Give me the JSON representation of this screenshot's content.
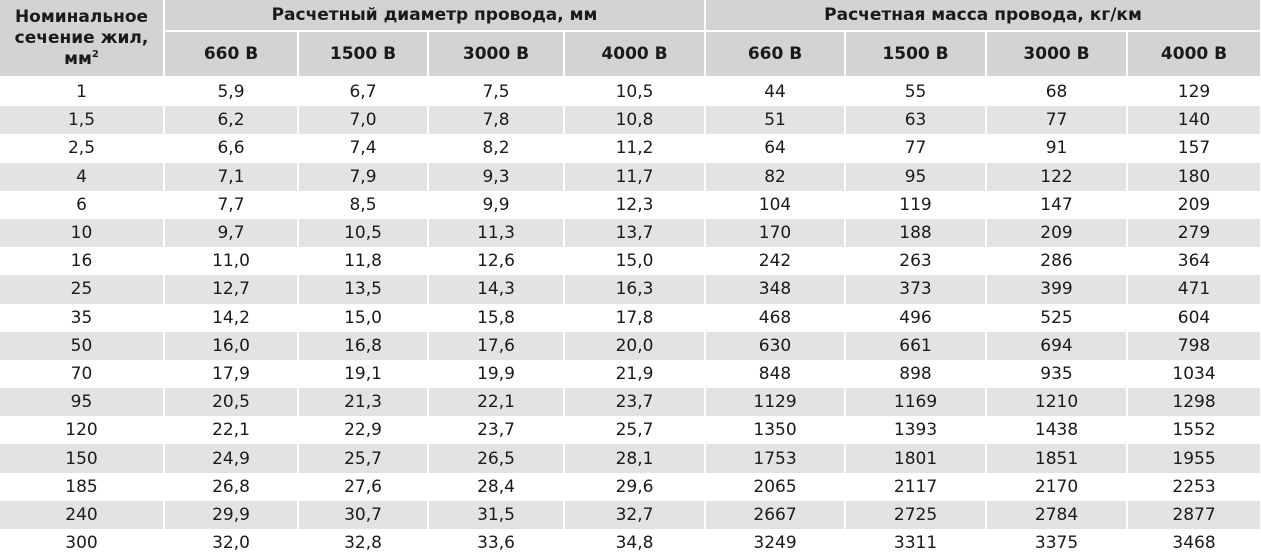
{
  "header": {
    "corner_line1": "Номинальное",
    "corner_line2": "сечение жил,",
    "corner_line3": "мм",
    "corner_sup": "2",
    "group_diameter": "Расчетный диаметр провода, мм",
    "group_mass": "Расчетная масса провода, кг/км",
    "voltages": [
      "660 В",
      "1500 В",
      "3000 В",
      "4000 В"
    ]
  },
  "rows": [
    {
      "section": "1",
      "d": [
        "5,9",
        "6,7",
        "7,5",
        "10,5"
      ],
      "m": [
        "44",
        "55",
        "68",
        "129"
      ]
    },
    {
      "section": "1,5",
      "d": [
        "6,2",
        "7,0",
        "7,8",
        "10,8"
      ],
      "m": [
        "51",
        "63",
        "77",
        "140"
      ]
    },
    {
      "section": "2,5",
      "d": [
        "6,6",
        "7,4",
        "8,2",
        "11,2"
      ],
      "m": [
        "64",
        "77",
        "91",
        "157"
      ]
    },
    {
      "section": "4",
      "d": [
        "7,1",
        "7,9",
        "9,3",
        "11,7"
      ],
      "m": [
        "82",
        "95",
        "122",
        "180"
      ]
    },
    {
      "section": "6",
      "d": [
        "7,7",
        "8,5",
        "9,9",
        "12,3"
      ],
      "m": [
        "104",
        "119",
        "147",
        "209"
      ]
    },
    {
      "section": "10",
      "d": [
        "9,7",
        "10,5",
        "11,3",
        "13,7"
      ],
      "m": [
        "170",
        "188",
        "209",
        "279"
      ]
    },
    {
      "section": "16",
      "d": [
        "11,0",
        "11,8",
        "12,6",
        "15,0"
      ],
      "m": [
        "242",
        "263",
        "286",
        "364"
      ]
    },
    {
      "section": "25",
      "d": [
        "12,7",
        "13,5",
        "14,3",
        "16,3"
      ],
      "m": [
        "348",
        "373",
        "399",
        "471"
      ]
    },
    {
      "section": "35",
      "d": [
        "14,2",
        "15,0",
        "15,8",
        "17,8"
      ],
      "m": [
        "468",
        "496",
        "525",
        "604"
      ]
    },
    {
      "section": "50",
      "d": [
        "16,0",
        "16,8",
        "17,6",
        "20,0"
      ],
      "m": [
        "630",
        "661",
        "694",
        "798"
      ]
    },
    {
      "section": "70",
      "d": [
        "17,9",
        "19,1",
        "19,9",
        "21,9"
      ],
      "m": [
        "848",
        "898",
        "935",
        "1034"
      ]
    },
    {
      "section": "95",
      "d": [
        "20,5",
        "21,3",
        "22,1",
        "23,7"
      ],
      "m": [
        "1129",
        "1169",
        "1210",
        "1298"
      ]
    },
    {
      "section": "120",
      "d": [
        "22,1",
        "22,9",
        "23,7",
        "25,7"
      ],
      "m": [
        "1350",
        "1393",
        "1438",
        "1552"
      ]
    },
    {
      "section": "150",
      "d": [
        "24,9",
        "25,7",
        "26,5",
        "28,1"
      ],
      "m": [
        "1753",
        "1801",
        "1851",
        "1955"
      ]
    },
    {
      "section": "185",
      "d": [
        "26,8",
        "27,6",
        "28,4",
        "29,6"
      ],
      "m": [
        "2065",
        "2117",
        "2170",
        "2253"
      ]
    },
    {
      "section": "240",
      "d": [
        "29,9",
        "30,7",
        "31,5",
        "32,7"
      ],
      "m": [
        "2667",
        "2725",
        "2784",
        "2877"
      ]
    },
    {
      "section": "300",
      "d": [
        "32,0",
        "32,8",
        "33,6",
        "34,8"
      ],
      "m": [
        "3249",
        "3311",
        "3375",
        "3468"
      ]
    }
  ]
}
